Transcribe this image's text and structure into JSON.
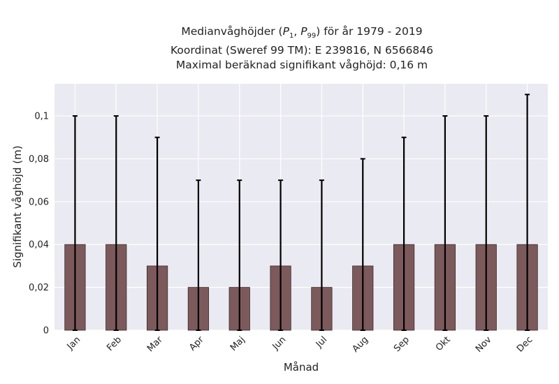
{
  "chart_data": {
    "type": "bar",
    "title_lines": [
      "Medianvåghöjder (P1, P99) för år 1979 - 2019",
      "Koordinat (Sweref 99 TM): E 239816, N 6566846",
      "Maximal beräknad signifikant våghöjd: 0,16 m"
    ],
    "xlabel": "Månad",
    "ylabel": "Signifikant våghöjd (m)",
    "categories": [
      "Jan",
      "Feb",
      "Mar",
      "Apr",
      "Maj",
      "Jun",
      "Jul",
      "Aug",
      "Sep",
      "Okt",
      "Nov",
      "Dec"
    ],
    "values": [
      0.04,
      0.04,
      0.03,
      0.02,
      0.02,
      0.03,
      0.02,
      0.03,
      0.04,
      0.04,
      0.04,
      0.04
    ],
    "lower": [
      0,
      0,
      0,
      0,
      0,
      0,
      0,
      0,
      0,
      0,
      0,
      0
    ],
    "upper": [
      0.1,
      0.1,
      0.09,
      0.07,
      0.07,
      0.07,
      0.07,
      0.08,
      0.09,
      0.1,
      0.1,
      0.11
    ],
    "ylim": [
      0,
      0.115
    ],
    "yticks": [
      0,
      0.02,
      0.04,
      0.06,
      0.08,
      0.1
    ],
    "ytick_labels": [
      "0",
      "0,02",
      "0,04",
      "0,06",
      "0,08",
      "0,1"
    ],
    "grid": true,
    "colors": {
      "bar": "#7c5a5c",
      "bar_edge": "#3a2a2b",
      "error": "#000000",
      "plot_bg": "#eaeaf2",
      "grid": "#ffffff"
    }
  }
}
